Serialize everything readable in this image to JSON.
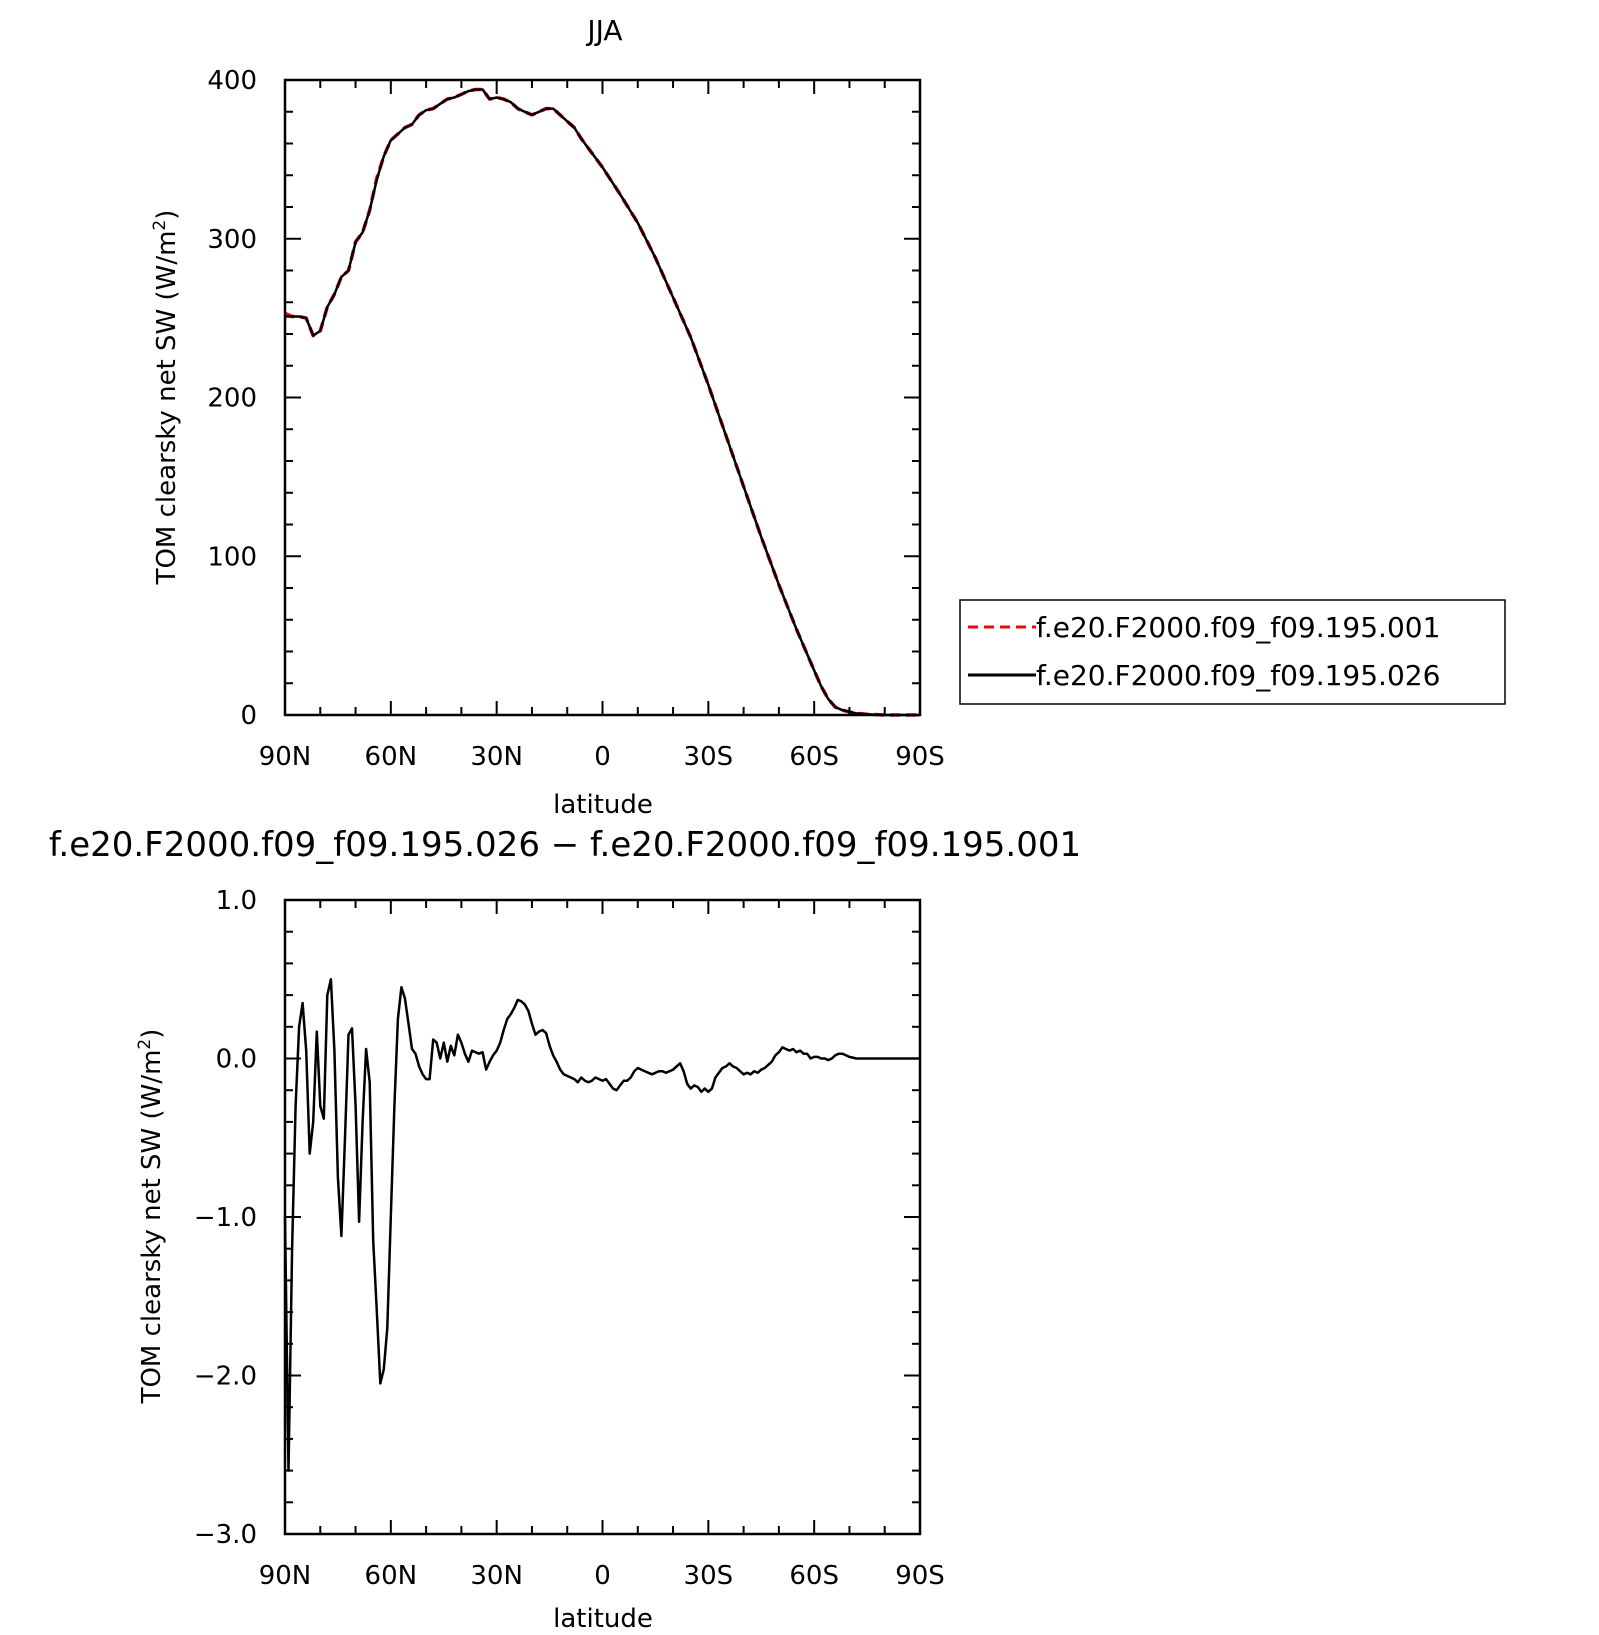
{
  "chart_data": [
    {
      "type": "line",
      "title": "JJA",
      "xlabel": "latitude",
      "ylabel": "TOM clearsky net SW (W/m²)",
      "ylabel_main": "TOM clearsky net SW (W/m",
      "ylabel_sup": "2",
      "ylabel_end": ")",
      "xlim": [
        90,
        -90
      ],
      "ylim": [
        0,
        400
      ],
      "xticks": [
        90,
        60,
        30,
        0,
        -30,
        -60,
        -90
      ],
      "xticklabels": [
        "90N",
        "60N",
        "30N",
        "0",
        "30S",
        "60S",
        "90S"
      ],
      "yticks": [
        0,
        100,
        200,
        300,
        400
      ],
      "yticklabels": [
        "0",
        "100",
        "200",
        "300",
        "400"
      ],
      "legend_position": "right",
      "series": [
        {
          "name": "f.e20.F2000.f09_f09.195.001",
          "color": "#ff0000",
          "style": "dashed",
          "x": [
            90,
            88,
            86,
            84,
            82,
            80,
            78,
            76,
            74,
            72,
            70,
            68,
            66,
            64,
            62,
            60,
            58,
            56,
            54,
            52,
            50,
            48,
            46,
            44,
            42,
            40,
            38,
            36,
            34,
            32,
            30,
            28,
            26,
            24,
            22,
            20,
            18,
            16,
            14,
            12,
            10,
            8,
            6,
            4,
            2,
            0,
            -5,
            -10,
            -15,
            -20,
            -25,
            -30,
            -35,
            -40,
            -45,
            -50,
            -55,
            -60,
            -62,
            -64,
            -66,
            -68,
            -70,
            -72,
            -75,
            -80,
            -90
          ],
          "y": [
            253,
            251,
            251,
            250,
            239,
            242,
            257,
            265,
            276,
            280,
            298,
            304,
            318,
            338,
            352,
            362,
            366,
            370,
            372,
            378,
            381,
            382,
            385,
            388,
            389,
            391,
            393,
            394,
            394,
            388,
            389,
            388,
            386,
            382,
            380,
            378,
            380,
            382,
            382,
            378,
            374,
            370,
            363,
            357,
            351,
            345,
            328,
            310,
            288,
            263,
            238,
            208,
            176,
            144,
            112,
            82,
            54,
            28,
            18,
            10,
            5,
            3,
            2,
            1,
            0.5,
            0,
            0
          ]
        },
        {
          "name": "f.e20.F2000.f09_f09.195.026",
          "color": "#000000",
          "style": "solid",
          "x": [
            90,
            88,
            86,
            84,
            82,
            80,
            78,
            76,
            74,
            72,
            70,
            68,
            66,
            64,
            62,
            60,
            58,
            56,
            54,
            52,
            50,
            48,
            46,
            44,
            42,
            40,
            38,
            36,
            34,
            32,
            30,
            28,
            26,
            24,
            22,
            20,
            18,
            16,
            14,
            12,
            10,
            8,
            6,
            4,
            2,
            0,
            -5,
            -10,
            -15,
            -20,
            -25,
            -30,
            -35,
            -40,
            -45,
            -50,
            -55,
            -60,
            -62,
            -64,
            -66,
            -68,
            -70,
            -72,
            -75,
            -80,
            -90
          ],
          "y": [
            251,
            251,
            251,
            250,
            239,
            242,
            257,
            265,
            276,
            280,
            298,
            304,
            318,
            337,
            352,
            362,
            366,
            370,
            372,
            378,
            381,
            382,
            385,
            388,
            389,
            391,
            393,
            394,
            394,
            388,
            389,
            388,
            386,
            382,
            380,
            378,
            380,
            382,
            382,
            378,
            374,
            370,
            363,
            357,
            351,
            345,
            328,
            310,
            288,
            263,
            238,
            208,
            176,
            144,
            112,
            82,
            54,
            28,
            18,
            10,
            5,
            3,
            2,
            1,
            0.5,
            0,
            0
          ]
        }
      ]
    },
    {
      "type": "line",
      "title": "f.e20.F2000.f09_f09.195.026 − f.e20.F2000.f09_f09.195.001",
      "xlabel": "latitude",
      "ylabel": "TOM clearsky net SW (W/m²)",
      "ylabel_main": "TOM clearsky net SW (W/m",
      "ylabel_sup": "2",
      "ylabel_end": ")",
      "xlim": [
        90,
        -90
      ],
      "ylim": [
        -3.0,
        1.0
      ],
      "xticks": [
        90,
        60,
        30,
        0,
        -30,
        -60,
        -90
      ],
      "xticklabels": [
        "90N",
        "60N",
        "30N",
        "0",
        "30S",
        "60S",
        "90S"
      ],
      "yticks": [
        -3.0,
        -2.0,
        -1.0,
        0.0,
        1.0
      ],
      "yticklabels": [
        "−3.0",
        "−2.0",
        "−1.0",
        "0.0",
        "1.0"
      ],
      "series": [
        {
          "color": "#000000",
          "style": "solid",
          "x": [
            90,
            89,
            88,
            87,
            86,
            85,
            84,
            83,
            82,
            81,
            80,
            79,
            78,
            77,
            76,
            75,
            74,
            73,
            72,
            71,
            70,
            69,
            68,
            67,
            66,
            65,
            64,
            63,
            62,
            61,
            60,
            59,
            58,
            57,
            56,
            55,
            54,
            53,
            52,
            51,
            50,
            49,
            48,
            47,
            46,
            45,
            44,
            43,
            42,
            41,
            40,
            39,
            38,
            37,
            36,
            35,
            34,
            33,
            32,
            31,
            30,
            29,
            28,
            27,
            26,
            25,
            24,
            23,
            22,
            21,
            20,
            19,
            18,
            17,
            16,
            15,
            14,
            13,
            12,
            11,
            10,
            9,
            8,
            7,
            6,
            5,
            4,
            3,
            2,
            1,
            0,
            -1,
            -2,
            -3,
            -4,
            -5,
            -6,
            -7,
            -8,
            -9,
            -10,
            -12,
            -14,
            -15,
            -16,
            -17,
            -18,
            -19,
            -20,
            -21,
            -22,
            -23,
            -24,
            -25,
            -26,
            -27,
            -28,
            -29,
            -30,
            -31,
            -32,
            -33,
            -34,
            -35,
            -36,
            -37,
            -38,
            -39,
            -40,
            -41,
            -42,
            -43,
            -44,
            -45,
            -46,
            -47,
            -48,
            -49,
            -50,
            -51,
            -52,
            -53,
            -54,
            -55,
            -56,
            -57,
            -58,
            -59,
            -60,
            -61,
            -62,
            -63,
            -64,
            -65,
            -66,
            -67,
            -68,
            -69,
            -70,
            -72,
            -75,
            -80,
            -85,
            -90
          ],
          "y": [
            -1.0,
            -2.6,
            -1.2,
            -0.3,
            0.2,
            0.35,
            0.05,
            -0.6,
            -0.4,
            0.17,
            -0.3,
            -0.38,
            0.4,
            0.5,
            0.05,
            -0.75,
            -1.12,
            -0.5,
            0.15,
            0.19,
            -0.3,
            -1.03,
            -0.4,
            0.06,
            -0.15,
            -1.15,
            -1.58,
            -2.05,
            -1.96,
            -1.7,
            -1.0,
            -0.3,
            0.25,
            0.45,
            0.38,
            0.22,
            0.06,
            0.03,
            -0.05,
            -0.1,
            -0.13,
            -0.13,
            0.12,
            0.1,
            0.0,
            0.1,
            -0.02,
            0.08,
            0.02,
            0.15,
            0.1,
            0.03,
            -0.02,
            0.05,
            0.04,
            0.03,
            0.04,
            -0.07,
            -0.02,
            0.02,
            0.05,
            0.1,
            0.18,
            0.25,
            0.28,
            0.32,
            0.37,
            0.36,
            0.34,
            0.3,
            0.22,
            0.15,
            0.17,
            0.18,
            0.16,
            0.08,
            0.02,
            -0.02,
            -0.07,
            -0.1,
            -0.11,
            -0.12,
            -0.13,
            -0.15,
            -0.12,
            -0.14,
            -0.15,
            -0.14,
            -0.12,
            -0.13,
            -0.14,
            -0.13,
            -0.16,
            -0.19,
            -0.2,
            -0.17,
            -0.14,
            -0.14,
            -0.12,
            -0.08,
            -0.06,
            -0.08,
            -0.1,
            -0.09,
            -0.08,
            -0.08,
            -0.09,
            -0.08,
            -0.07,
            -0.05,
            -0.03,
            -0.08,
            -0.16,
            -0.19,
            -0.17,
            -0.18,
            -0.21,
            -0.19,
            -0.21,
            -0.19,
            -0.12,
            -0.09,
            -0.06,
            -0.05,
            -0.03,
            -0.05,
            -0.06,
            -0.08,
            -0.1,
            -0.09,
            -0.1,
            -0.08,
            -0.09,
            -0.07,
            -0.06,
            -0.04,
            -0.02,
            0.02,
            0.04,
            0.07,
            0.06,
            0.05,
            0.06,
            0.04,
            0.05,
            0.03,
            0.03,
            0.0,
            0.01,
            0.01,
            0.0,
            0.0,
            -0.01,
            0.0,
            0.02,
            0.03,
            0.03,
            0.02,
            0.01,
            0.0,
            0.0,
            0.0,
            0.0,
            0.0
          ]
        }
      ]
    }
  ]
}
